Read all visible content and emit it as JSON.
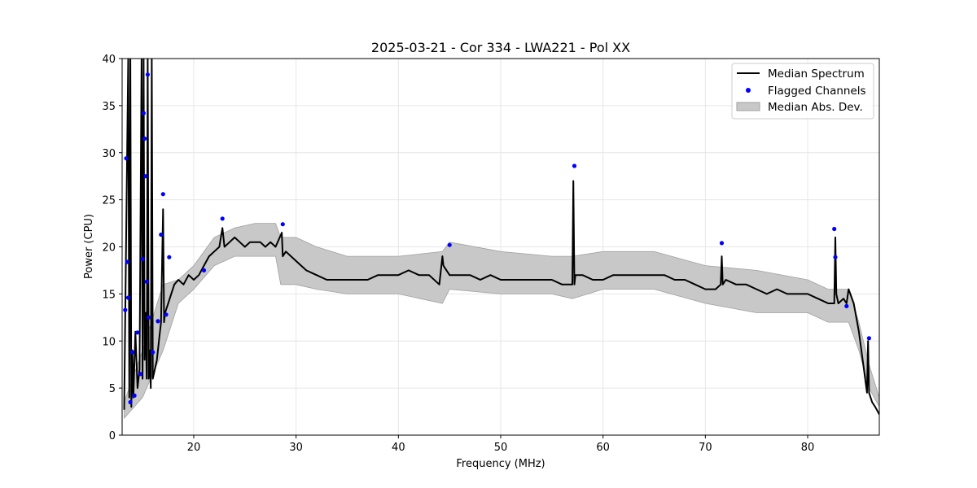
{
  "chart_data": {
    "type": "line",
    "title": "2025-03-21 - Cor 334 - LWA221 - Pol XX",
    "xlabel": "Frequency (MHz)",
    "ylabel": "Power (CPU)",
    "xlim": [
      13,
      87
    ],
    "ylim": [
      0,
      40
    ],
    "xticks": [
      20,
      30,
      40,
      50,
      60,
      70,
      80
    ],
    "yticks": [
      0,
      5,
      10,
      15,
      20,
      25,
      30,
      35,
      40
    ],
    "grid": true,
    "legend_position": "top-right",
    "legend": [
      "Median Spectrum",
      "Flagged Channels",
      "Median Abs. Dev."
    ],
    "colors": {
      "median": "#000000",
      "flagged": "#0000ff",
      "mad_fill": "#c8c8c8",
      "mad_edge": "#a0a0a0"
    },
    "series": [
      {
        "name": "Median Spectrum",
        "style": "line",
        "x": [
          13.2,
          13.6,
          13.7,
          13.8,
          13.9,
          14.0,
          14.1,
          14.3,
          14.5,
          14.7,
          14.9,
          15.0,
          15.1,
          15.2,
          15.3,
          15.4,
          15.5,
          15.6,
          15.7,
          15.8,
          15.9,
          16.0,
          16.2,
          16.4,
          16.6,
          16.8,
          17.0,
          17.1,
          17.2,
          17.5,
          17.8,
          18.1,
          18.5,
          19.0,
          19.5,
          20.0,
          20.5,
          21.0,
          21.5,
          22.0,
          22.5,
          22.8,
          23.0,
          23.5,
          24.0,
          24.5,
          25.0,
          25.5,
          26.0,
          26.5,
          27.0,
          27.5,
          28.0,
          28.6,
          28.7,
          29.0,
          29.5,
          30.0,
          31.0,
          32.0,
          33.0,
          34.0,
          35.0,
          36.0,
          37.0,
          38.0,
          39.0,
          40.0,
          41.0,
          42.0,
          43.0,
          44.0,
          44.3,
          44.4,
          45.0,
          46.0,
          47.0,
          48.0,
          49.0,
          50.0,
          51.0,
          52.0,
          53.0,
          54.0,
          55.0,
          56.0,
          57.0,
          57.1,
          57.2,
          57.3,
          58.0,
          59.0,
          60.0,
          61.0,
          62.0,
          63.0,
          64.0,
          65.0,
          66.0,
          67.0,
          68.0,
          69.0,
          70.0,
          71.0,
          71.5,
          71.6,
          71.7,
          72.0,
          73.0,
          74.0,
          75.0,
          76.0,
          77.0,
          78.0,
          79.0,
          80.0,
          81.0,
          82.0,
          82.6,
          82.7,
          82.8,
          83.0,
          83.5,
          83.8,
          84.0,
          84.5,
          85.0,
          85.5,
          85.8,
          85.9,
          86.0,
          86.3,
          86.6,
          87.0
        ],
        "y": [
          2.7,
          40,
          4,
          40,
          3,
          9,
          4,
          11,
          5,
          7,
          40,
          6,
          40,
          8,
          13,
          6,
          40,
          6,
          9,
          5,
          40,
          6,
          7,
          8,
          10,
          12,
          24,
          12,
          13,
          14,
          15,
          16,
          16.5,
          16,
          17,
          16.5,
          17,
          18,
          19,
          19.5,
          20,
          22,
          20,
          20.5,
          21,
          20.5,
          20,
          20.5,
          20.5,
          20.5,
          20,
          20.5,
          20,
          21.5,
          19,
          19.5,
          19,
          18.5,
          17.5,
          17,
          16.5,
          16.5,
          16.5,
          16.5,
          16.5,
          17,
          17,
          17,
          17.5,
          17,
          17,
          16,
          19,
          18,
          17,
          17,
          17,
          16.5,
          17,
          16.5,
          16.5,
          16.5,
          16.5,
          16.5,
          16.5,
          16,
          16,
          27,
          16,
          17,
          17,
          16.5,
          16.5,
          17,
          17,
          17,
          17,
          17,
          17,
          16.5,
          16.5,
          16,
          15.5,
          15.5,
          16,
          19,
          16,
          16.5,
          16,
          16,
          15.5,
          15,
          15.5,
          15,
          15,
          15,
          14.5,
          14,
          14,
          21,
          15,
          14,
          14.5,
          14,
          15.5,
          14,
          11,
          7,
          4.5,
          10,
          4.5,
          3.5,
          3,
          2.2
        ]
      },
      {
        "name": "Flagged Channels",
        "style": "scatter",
        "x": [
          13.3,
          13.4,
          13.5,
          13.6,
          13.8,
          14.0,
          14.2,
          14.5,
          14.8,
          15.0,
          15.1,
          15.2,
          15.3,
          15.4,
          15.5,
          15.6,
          16.0,
          16.5,
          16.8,
          17.0,
          17.3,
          17.6,
          21.0,
          22.8,
          28.7,
          45.0,
          57.2,
          71.6,
          82.6,
          82.7,
          83.8,
          86.0
        ],
        "y": [
          13.3,
          29.4,
          18.4,
          14.6,
          3.5,
          8.8,
          4.2,
          10.9,
          6.5,
          18.7,
          34.2,
          31.5,
          27.5,
          16.3,
          38.3,
          12.5,
          8.8,
          12.1,
          21.3,
          25.6,
          12.8,
          18.9,
          17.5,
          23.0,
          22.4,
          20.2,
          28.6,
          20.4,
          21.9,
          18.9,
          13.7,
          10.3
        ]
      },
      {
        "name": "Median Abs. Dev.",
        "style": "band",
        "x": [
          13.2,
          15.0,
          17.0,
          18.5,
          20.0,
          22.0,
          24.0,
          26.0,
          28.0,
          28.5,
          30.0,
          32.0,
          35.0,
          40.0,
          44.3,
          45.0,
          50.0,
          55.0,
          57.0,
          60.0,
          65.0,
          70.0,
          75.0,
          80.0,
          82.0,
          84.0,
          85.0,
          86.0,
          87.0
        ],
        "lower": [
          1.8,
          4,
          9,
          14,
          15.5,
          18,
          19,
          19,
          19,
          16,
          16,
          15.5,
          15,
          15,
          14,
          15.5,
          15,
          15,
          14.5,
          15.5,
          15.5,
          14,
          13,
          13,
          12,
          12,
          9,
          5,
          3
        ],
        "upper": [
          3.5,
          9,
          16,
          16.5,
          18,
          21,
          22,
          22.5,
          22.5,
          21,
          21,
          20,
          19,
          19,
          19.5,
          20.5,
          19.5,
          19,
          19,
          19.5,
          19.5,
          18,
          17.5,
          16.5,
          15.5,
          15.5,
          12,
          7.5,
          4
        ]
      }
    ]
  }
}
